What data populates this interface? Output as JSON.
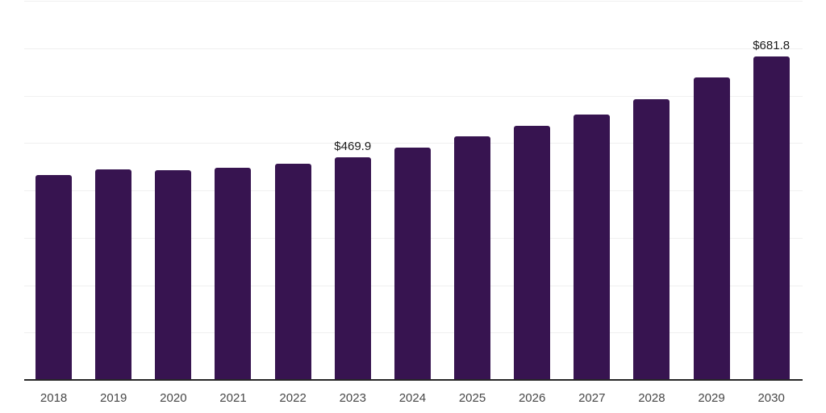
{
  "chart": {
    "background_color": "#ffffff",
    "bar_color": "#371450",
    "grid_color": "#f0f0f0",
    "axis_color": "#262626",
    "tick_label_color": "#474747",
    "value_label_color": "#1a1a1a"
  },
  "chart_data": {
    "type": "bar",
    "title": "",
    "xlabel": "",
    "ylabel": "",
    "categories": [
      "2018",
      "2019",
      "2020",
      "2021",
      "2022",
      "2023",
      "2024",
      "2025",
      "2026",
      "2027",
      "2028",
      "2029",
      "2030"
    ],
    "values": [
      431.5,
      444.8,
      442.6,
      447.4,
      456.5,
      469.9,
      490.1,
      513.5,
      535.8,
      560.2,
      591.5,
      637.9,
      681.8
    ],
    "labels": [
      "",
      "",
      "",
      "",
      "",
      "$469.9",
      "",
      "",
      "",
      "",
      "",
      "",
      "$681.8"
    ],
    "value_prefix": "$",
    "ylim": [
      0,
      800
    ],
    "gridline_step": 100,
    "grid": true,
    "legend": false,
    "x_axis_line": true,
    "y_axis_ticks_visible": false
  }
}
